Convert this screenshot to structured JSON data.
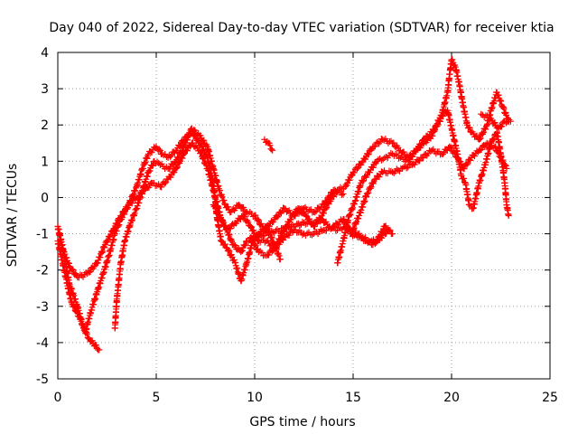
{
  "chart_data": {
    "type": "scatter",
    "title": "Day 040 of 2022, Sidereal Day-to-day VTEC variation (SDTVAR) for receiver ktia",
    "xlabel": "GPS time / hours",
    "ylabel": "SDTVAR / TECUs",
    "xlim": [
      0,
      25
    ],
    "ylim": [
      -5,
      4
    ],
    "xticks": [
      0,
      5,
      10,
      15,
      20,
      25
    ],
    "yticks": [
      -5,
      -4,
      -3,
      -2,
      -1,
      0,
      1,
      2,
      3,
      4
    ],
    "grid": true,
    "legend": "none",
    "marker": "+",
    "color": "#ff0000",
    "series": [
      {
        "name": "track-1",
        "points": [
          [
            0.0,
            -0.8
          ],
          [
            0.3,
            -1.6
          ],
          [
            0.6,
            -2.4
          ],
          [
            1.0,
            -3.0
          ],
          [
            1.3,
            -3.6
          ],
          [
            1.6,
            -3.9
          ],
          [
            2.1,
            -4.2
          ]
        ]
      },
      {
        "name": "track-2",
        "points": [
          [
            0.0,
            -1.2
          ],
          [
            0.4,
            -2.2
          ],
          [
            0.7,
            -2.9
          ],
          [
            1.1,
            -3.3
          ],
          [
            1.4,
            -3.7
          ],
          [
            1.7,
            -3.1
          ],
          [
            2.0,
            -2.6
          ],
          [
            2.3,
            -2.1
          ],
          [
            2.6,
            -1.6
          ],
          [
            2.9,
            -1.0
          ],
          [
            3.2,
            -0.6
          ],
          [
            3.6,
            -0.2
          ],
          [
            4.0,
            0.3
          ],
          [
            4.3,
            0.8
          ],
          [
            4.6,
            1.2
          ],
          [
            5.0,
            1.4
          ],
          [
            5.3,
            1.2
          ],
          [
            5.6,
            1.1
          ],
          [
            6.0,
            1.3
          ],
          [
            6.4,
            1.6
          ],
          [
            6.8,
            1.8
          ],
          [
            7.2,
            1.5
          ],
          [
            7.6,
            1.1
          ],
          [
            7.9,
            0.4
          ],
          [
            8.1,
            -0.6
          ],
          [
            8.3,
            -1.2
          ],
          [
            8.6,
            -1.4
          ],
          [
            9.0,
            -1.8
          ],
          [
            9.3,
            -2.3
          ],
          [
            9.6,
            -1.8
          ],
          [
            9.9,
            -1.2
          ],
          [
            10.2,
            -1.0
          ],
          [
            10.6,
            -0.8
          ],
          [
            11.0,
            -1.3
          ],
          [
            11.3,
            -1.7
          ]
        ]
      },
      {
        "name": "track-3",
        "points": [
          [
            0.0,
            -0.8
          ],
          [
            0.3,
            -1.5
          ],
          [
            0.6,
            -1.9
          ],
          [
            1.0,
            -2.2
          ],
          [
            1.5,
            -2.1
          ],
          [
            2.0,
            -1.8
          ],
          [
            2.4,
            -1.3
          ],
          [
            2.8,
            -0.9
          ],
          [
            3.2,
            -0.5
          ],
          [
            3.6,
            -0.2
          ],
          [
            4.0,
            0.0
          ],
          [
            4.4,
            0.2
          ],
          [
            4.8,
            0.4
          ],
          [
            5.2,
            0.3
          ],
          [
            5.6,
            0.5
          ],
          [
            6.0,
            0.8
          ],
          [
            6.4,
            1.2
          ],
          [
            6.8,
            1.5
          ],
          [
            7.2,
            1.3
          ],
          [
            7.6,
            0.8
          ],
          [
            8.0,
            0.0
          ],
          [
            8.3,
            -0.6
          ],
          [
            8.6,
            -0.9
          ],
          [
            9.0,
            -0.7
          ],
          [
            9.4,
            -0.5
          ],
          [
            9.8,
            -0.8
          ],
          [
            10.2,
            -1.2
          ],
          [
            10.6,
            -1.2
          ],
          [
            11.0,
            -1.4
          ],
          [
            11.5,
            -1.1
          ],
          [
            12.0,
            -0.9
          ],
          [
            12.5,
            -1.0
          ],
          [
            13.0,
            -1.0
          ],
          [
            13.5,
            -0.9
          ],
          [
            14.0,
            -0.8
          ],
          [
            14.5,
            -0.6
          ],
          [
            14.9,
            -1.0
          ],
          [
            15.3,
            -1.1
          ],
          [
            15.7,
            -1.2
          ],
          [
            16.2,
            -1.2
          ],
          [
            16.6,
            -0.8
          ],
          [
            17.0,
            -1.0
          ]
        ]
      },
      {
        "name": "track-4",
        "points": [
          [
            2.9,
            -3.6
          ],
          [
            3.0,
            -2.8
          ],
          [
            3.2,
            -1.8
          ],
          [
            3.4,
            -1.2
          ],
          [
            3.7,
            -0.7
          ],
          [
            4.0,
            -0.3
          ],
          [
            4.3,
            0.2
          ],
          [
            4.6,
            0.7
          ],
          [
            4.9,
            1.0
          ],
          [
            5.2,
            0.9
          ],
          [
            5.6,
            0.8
          ],
          [
            6.0,
            1.0
          ],
          [
            6.4,
            1.4
          ],
          [
            6.8,
            1.9
          ],
          [
            7.2,
            1.7
          ],
          [
            7.6,
            1.4
          ],
          [
            7.9,
            0.8
          ],
          [
            8.2,
            0.2
          ],
          [
            8.5,
            -0.2
          ],
          [
            8.8,
            -0.4
          ],
          [
            9.2,
            -0.2
          ],
          [
            9.6,
            -0.4
          ],
          [
            10.0,
            -0.5
          ],
          [
            10.5,
            -0.9
          ],
          [
            11.0,
            -0.6
          ],
          [
            11.5,
            -0.3
          ],
          [
            12.0,
            -0.5
          ],
          [
            12.5,
            -0.3
          ],
          [
            13.0,
            -0.4
          ],
          [
            13.5,
            -0.2
          ],
          [
            14.0,
            0.2
          ],
          [
            14.5,
            0.1
          ]
        ]
      },
      {
        "name": "track-5",
        "points": [
          [
            9.8,
            -1.1
          ],
          [
            10.2,
            -1.5
          ],
          [
            10.6,
            -1.6
          ],
          [
            11.0,
            -1.4
          ],
          [
            11.4,
            -1.0
          ],
          [
            11.8,
            -0.6
          ],
          [
            12.2,
            -0.3
          ],
          [
            12.6,
            -0.5
          ],
          [
            13.0,
            -0.8
          ],
          [
            13.4,
            -0.5
          ],
          [
            13.8,
            -0.1
          ],
          [
            14.2,
            0.2
          ],
          [
            14.6,
            0.3
          ],
          [
            15.0,
            0.7
          ],
          [
            15.5,
            1.0
          ],
          [
            16.0,
            1.4
          ],
          [
            16.5,
            1.6
          ],
          [
            17.0,
            1.5
          ],
          [
            17.4,
            1.3
          ],
          [
            17.8,
            1.1
          ],
          [
            18.2,
            1.3
          ],
          [
            18.6,
            1.6
          ],
          [
            19.0,
            1.8
          ],
          [
            19.4,
            2.1
          ],
          [
            19.6,
            2.5
          ],
          [
            19.8,
            2.9
          ],
          [
            19.9,
            3.4
          ],
          [
            20.0,
            3.8
          ],
          [
            20.2,
            3.6
          ],
          [
            20.4,
            3.1
          ],
          [
            20.6,
            2.5
          ],
          [
            20.8,
            2.0
          ],
          [
            21.0,
            1.8
          ],
          [
            21.4,
            1.6
          ],
          [
            21.8,
            2.0
          ],
          [
            22.0,
            2.4
          ],
          [
            22.3,
            2.9
          ],
          [
            22.6,
            2.5
          ],
          [
            22.9,
            2.1
          ]
        ]
      },
      {
        "name": "track-6",
        "points": [
          [
            14.2,
            -1.8
          ],
          [
            14.5,
            -1.2
          ],
          [
            14.8,
            -0.5
          ],
          [
            15.1,
            -0.1
          ],
          [
            15.4,
            0.4
          ],
          [
            15.8,
            0.7
          ],
          [
            16.2,
            1.0
          ],
          [
            16.6,
            1.1
          ],
          [
            17.0,
            1.2
          ],
          [
            17.4,
            1.1
          ],
          [
            17.8,
            1.0
          ],
          [
            18.2,
            1.3
          ],
          [
            18.6,
            1.5
          ],
          [
            19.0,
            1.7
          ],
          [
            19.4,
            2.2
          ],
          [
            19.8,
            2.4
          ],
          [
            20.0,
            1.9
          ],
          [
            20.3,
            1.2
          ],
          [
            20.5,
            0.6
          ],
          [
            20.7,
            0.4
          ],
          [
            20.9,
            -0.2
          ],
          [
            21.1,
            -0.3
          ],
          [
            21.4,
            0.4
          ],
          [
            21.7,
            0.9
          ],
          [
            22.0,
            1.5
          ],
          [
            22.3,
            1.8
          ],
          [
            22.5,
            1.2
          ],
          [
            22.7,
            0.4
          ],
          [
            22.8,
            -0.2
          ],
          [
            22.9,
            -0.5
          ]
        ]
      },
      {
        "name": "track-7",
        "points": [
          [
            14.9,
            -1.0
          ],
          [
            15.3,
            -0.5
          ],
          [
            15.7,
            0.1
          ],
          [
            16.1,
            0.5
          ],
          [
            16.5,
            0.7
          ],
          [
            17.0,
            0.7
          ],
          [
            17.5,
            0.8
          ],
          [
            18.0,
            0.9
          ],
          [
            18.5,
            1.1
          ],
          [
            19.0,
            1.3
          ],
          [
            19.5,
            1.2
          ],
          [
            19.9,
            1.4
          ],
          [
            20.3,
            1.1
          ],
          [
            20.6,
            0.8
          ],
          [
            21.0,
            1.1
          ],
          [
            21.4,
            1.3
          ],
          [
            21.8,
            1.5
          ],
          [
            22.2,
            1.4
          ],
          [
            22.5,
            1.1
          ],
          [
            22.8,
            0.8
          ]
        ]
      },
      {
        "name": "track-8",
        "points": [
          [
            10.5,
            1.6
          ],
          [
            10.7,
            1.5
          ],
          [
            10.9,
            1.3
          ],
          [
            7.9,
            -0.2
          ],
          [
            8.2,
            -0.5
          ],
          [
            8.5,
            -0.8
          ],
          [
            8.9,
            -1.3
          ],
          [
            9.3,
            -1.5
          ],
          [
            9.6,
            -1.2
          ],
          [
            10.0,
            -1.1
          ],
          [
            12.5,
            -0.7
          ],
          [
            13.0,
            -0.7
          ],
          [
            13.4,
            -0.6
          ],
          [
            13.8,
            -0.8
          ],
          [
            14.2,
            -0.9
          ],
          [
            14.6,
            -0.8
          ],
          [
            15.5,
            -1.1
          ],
          [
            16.0,
            -1.3
          ],
          [
            16.4,
            -1.1
          ],
          [
            16.8,
            -0.9
          ],
          [
            21.5,
            2.3
          ],
          [
            21.9,
            2.2
          ],
          [
            22.4,
            1.9
          ],
          [
            22.7,
            2.1
          ],
          [
            23.0,
            2.1
          ]
        ]
      }
    ]
  }
}
